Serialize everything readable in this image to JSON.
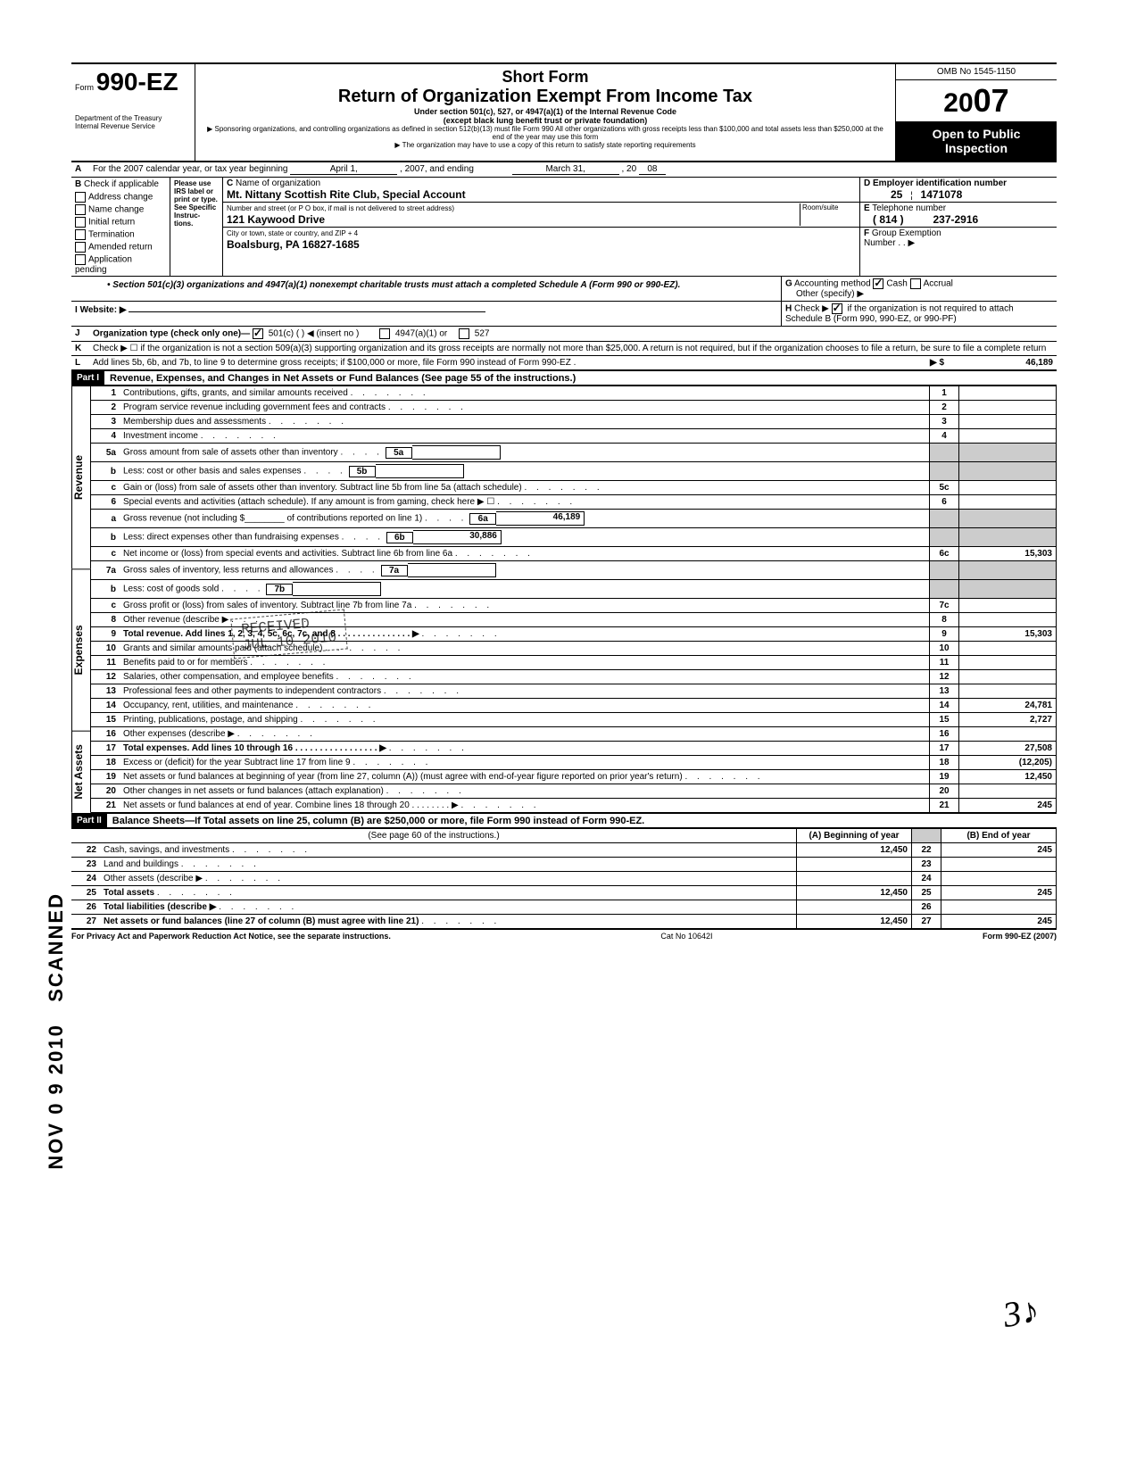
{
  "header": {
    "form_prefix": "Form",
    "form_number": "990-EZ",
    "dept1": "Department of the Treasury",
    "dept2": "Internal Revenue Service",
    "short_form": "Short Form",
    "title": "Return of Organization Exempt From Income Tax",
    "subtitle1": "Under section 501(c), 527, or 4947(a)(1) of the Internal Revenue Code",
    "subtitle2": "(except black lung benefit trust or private foundation)",
    "sponsor_note": "▶ Sponsoring organizations, and controlling organizations as defined in section 512(b)(13) must file Form 990  All other organizations with gross receipts less than $100,000 and total assets less than $250,000 at the end of the year may use this form",
    "copy_note": "▶ The organization may have to use a copy of this return to satisfy state reporting requirements",
    "omb": "OMB No  1545-1150",
    "year_prefix": "20",
    "year_suffix": "07",
    "open": "Open to Public",
    "inspection": "Inspection"
  },
  "section_a": {
    "label": "A",
    "text": "For the 2007 calendar year, or tax year beginning",
    "begin": "April 1,",
    "mid": ", 2007, and ending",
    "end_month": "March 31,",
    "end_year_prefix": ", 20",
    "end_year": "08"
  },
  "section_b": {
    "label": "B",
    "title": "Check if applicable",
    "items": [
      "Address change",
      "Name change",
      "Initial return",
      "Termination",
      "Amended return",
      "Application pending"
    ],
    "please": "Please use IRS label or print or type. See Specific Instruc-tions."
  },
  "section_c": {
    "label": "C",
    "name_label": "Name of organization",
    "name": "Mt. Nittany Scottish Rite Club, Special Account",
    "street_label": "Number and street (or P O  box, if mail is not delivered to street address)",
    "room_label": "Room/suite",
    "street": "121 Kaywood Drive",
    "city_label": "City or town, state or country, and ZIP + 4",
    "city": "Boalsburg, PA  16827-1685"
  },
  "section_d": {
    "label": "D",
    "title": "Employer identification number",
    "ein1": "25",
    "ein2": "1471078"
  },
  "section_e": {
    "label": "E",
    "title": "Telephone number",
    "area": "( 814 )",
    "phone": "237-2916"
  },
  "section_f": {
    "label": "F",
    "title": "Group Exemption",
    "number_label": "Number   .   .  ▶"
  },
  "bullet_501c3": "• Section 501(c)(3) organizations and 4947(a)(1) nonexempt charitable trusts must attach a completed Schedule A (Form 990 or 990-EZ).",
  "section_g": {
    "label": "G",
    "title": "Accounting method",
    "cash": "Cash",
    "accrual": "Accrual",
    "other": "Other (specify) ▶"
  },
  "section_h": {
    "label": "H",
    "text1": "Check ▶",
    "text2": "if the organization is not required to attach Schedule B (Form 990, 990-EZ, or 990-PF)"
  },
  "section_i": {
    "label": "I",
    "title": "Website: ▶"
  },
  "section_j": {
    "label": "J",
    "title": "Organization type (check only one)—",
    "opt1": "501(c) (       ) ◀ (insert no )",
    "opt2": "4947(a)(1) or",
    "opt3": "527"
  },
  "section_k": {
    "label": "K",
    "text": "Check ▶ ☐ if the organization is not a section 509(a)(3) supporting organization and its gross receipts are normally not more than $25,000. A return is not required, but if the organization chooses to file a return, be sure to file a complete return"
  },
  "section_l": {
    "label": "L",
    "text": "Add lines 5b, 6b, and 7b, to line 9 to determine gross receipts; if $100,000 or more, file Form 990 instead of Form 990-EZ .",
    "arrow": "▶ $",
    "amount": "46,189"
  },
  "part1": {
    "label": "Part I",
    "title": "Revenue, Expenses, and Changes in Net Assets or Fund Balances (See page 55 of the instructions.)"
  },
  "revenue_label": "Revenue",
  "expenses_label": "Expenses",
  "netassets_label": "Net Assets",
  "lines": {
    "l1": {
      "n": "1",
      "t": "Contributions, gifts, grants, and similar amounts received"
    },
    "l2": {
      "n": "2",
      "t": "Program service revenue including government fees and contracts"
    },
    "l3": {
      "n": "3",
      "t": "Membership dues and assessments"
    },
    "l4": {
      "n": "4",
      "t": "Investment income"
    },
    "l5a": {
      "n": "5a",
      "t": "Gross amount from sale of assets other than inventory",
      "box": "5a"
    },
    "l5b": {
      "n": "b",
      "t": "Less: cost or other basis and sales expenses",
      "box": "5b"
    },
    "l5c": {
      "n": "c",
      "t": "Gain or (loss) from sale of assets other than inventory. Subtract line 5b from line 5a (attach schedule)",
      "rn": "5c"
    },
    "l6": {
      "n": "6",
      "t": "Special events and activities (attach schedule). If any amount is from gaming, check here ▶  ☐"
    },
    "l6a": {
      "n": "a",
      "t": "Gross revenue (not including $________ of contributions reported on line 1)",
      "box": "6a",
      "amt": "46,189"
    },
    "l6b": {
      "n": "b",
      "t": "Less: direct expenses other than fundraising expenses",
      "box": "6b",
      "amt": "30,886"
    },
    "l6c": {
      "n": "c",
      "t": "Net income or (loss) from special events and activities. Subtract line 6b from line 6a",
      "rn": "6c",
      "ramt": "15,303"
    },
    "l7a": {
      "n": "7a",
      "t": "Gross sales of inventory, less returns and allowances",
      "box": "7a"
    },
    "l7b": {
      "n": "b",
      "t": "Less: cost of goods sold",
      "box": "7b"
    },
    "l7c": {
      "n": "c",
      "t": "Gross profit or (loss) from sales of inventory. Subtract line 7b from line 7a",
      "rn": "7c"
    },
    "l8": {
      "n": "8",
      "t": "Other revenue (describe ▶",
      "rn": "8"
    },
    "l9": {
      "n": "9",
      "t": "Total revenue. Add lines 1, 2, 3, 4, 5c, 6c, 7c, and 8 .  .  .  .  .  .  .  .  .  .  .  .  .  .  .  ▶",
      "rn": "9",
      "ramt": "15,303"
    },
    "l10": {
      "n": "10",
      "t": "Grants and similar amounts paid (attach schedule)",
      "rn": "10"
    },
    "l11": {
      "n": "11",
      "t": "Benefits paid to or for members",
      "rn": "11"
    },
    "l12": {
      "n": "12",
      "t": "Salaries, other compensation, and employee benefits",
      "rn": "12"
    },
    "l13": {
      "n": "13",
      "t": "Professional fees and other payments to independent contractors",
      "rn": "13"
    },
    "l14": {
      "n": "14",
      "t": "Occupancy, rent, utilities, and maintenance",
      "rn": "14",
      "ramt": "24,781"
    },
    "l15": {
      "n": "15",
      "t": "Printing, publications, postage, and shipping",
      "rn": "15",
      "ramt": "2,727"
    },
    "l16": {
      "n": "16",
      "t": "Other expenses (describe ▶",
      "rn": "16"
    },
    "l17": {
      "n": "17",
      "t": "Total expenses. Add lines 10 through 16   .  .  .  .  .  .  .  .  .  .  .  .  .  .  .  .  .  ▶",
      "rn": "17",
      "ramt": "27,508"
    },
    "l18": {
      "n": "18",
      "t": "Excess or (deficit) for the year  Subtract line 17 from line 9",
      "rn": "18",
      "ramt": "(12,205)"
    },
    "l19": {
      "n": "19",
      "t": "Net assets or fund balances at beginning of year (from line 27, column (A)) (must agree with end-of-year figure reported on prior year's return)",
      "rn": "19",
      "ramt": "12,450"
    },
    "l20": {
      "n": "20",
      "t": "Other changes in net assets or fund balances (attach explanation)",
      "rn": "20"
    },
    "l21": {
      "n": "21",
      "t": "Net assets or fund balances at end of year. Combine lines 18 through 20 .  .  .  .  .  .  .  .  ▶",
      "rn": "21",
      "ramt": "245"
    }
  },
  "part2": {
    "label": "Part II",
    "title": "Balance Sheets—If Total assets on line 25, column (B) are $250,000 or more, file Form 990 instead of Form 990-EZ.",
    "instructions": "(See page 60 of the instructions.)",
    "col_a": "(A) Beginning of year",
    "col_b": "(B) End of year"
  },
  "bs": {
    "l22": {
      "n": "22",
      "t": "Cash, savings, and investments",
      "a": "12,450",
      "rn": "22",
      "b": "245"
    },
    "l23": {
      "n": "23",
      "t": "Land and buildings",
      "a": "",
      "rn": "23",
      "b": ""
    },
    "l24": {
      "n": "24",
      "t": "Other assets (describe ▶",
      "a": "",
      "rn": "24",
      "b": ""
    },
    "l25": {
      "n": "25",
      "t": "Total assets",
      "a": "12,450",
      "rn": "25",
      "b": "245"
    },
    "l26": {
      "n": "26",
      "t": "Total liabilities (describe ▶",
      "a": "",
      "rn": "26",
      "b": ""
    },
    "l27": {
      "n": "27",
      "t": "Net assets or fund balances (line 27 of column (B) must agree with line 21)",
      "a": "12,450",
      "rn": "27",
      "b": "245"
    }
  },
  "footer": {
    "privacy": "For Privacy Act and Paperwork Reduction Act Notice, see the separate instructions.",
    "cat": "Cat  No  10642I",
    "form": "Form 990-EZ (2007)"
  },
  "stamp": {
    "l1": "RECEIVED",
    "l2": "JUL 10 2010"
  },
  "side_stamp": "NOV 0 9 2010",
  "scanned": "SCANNED"
}
